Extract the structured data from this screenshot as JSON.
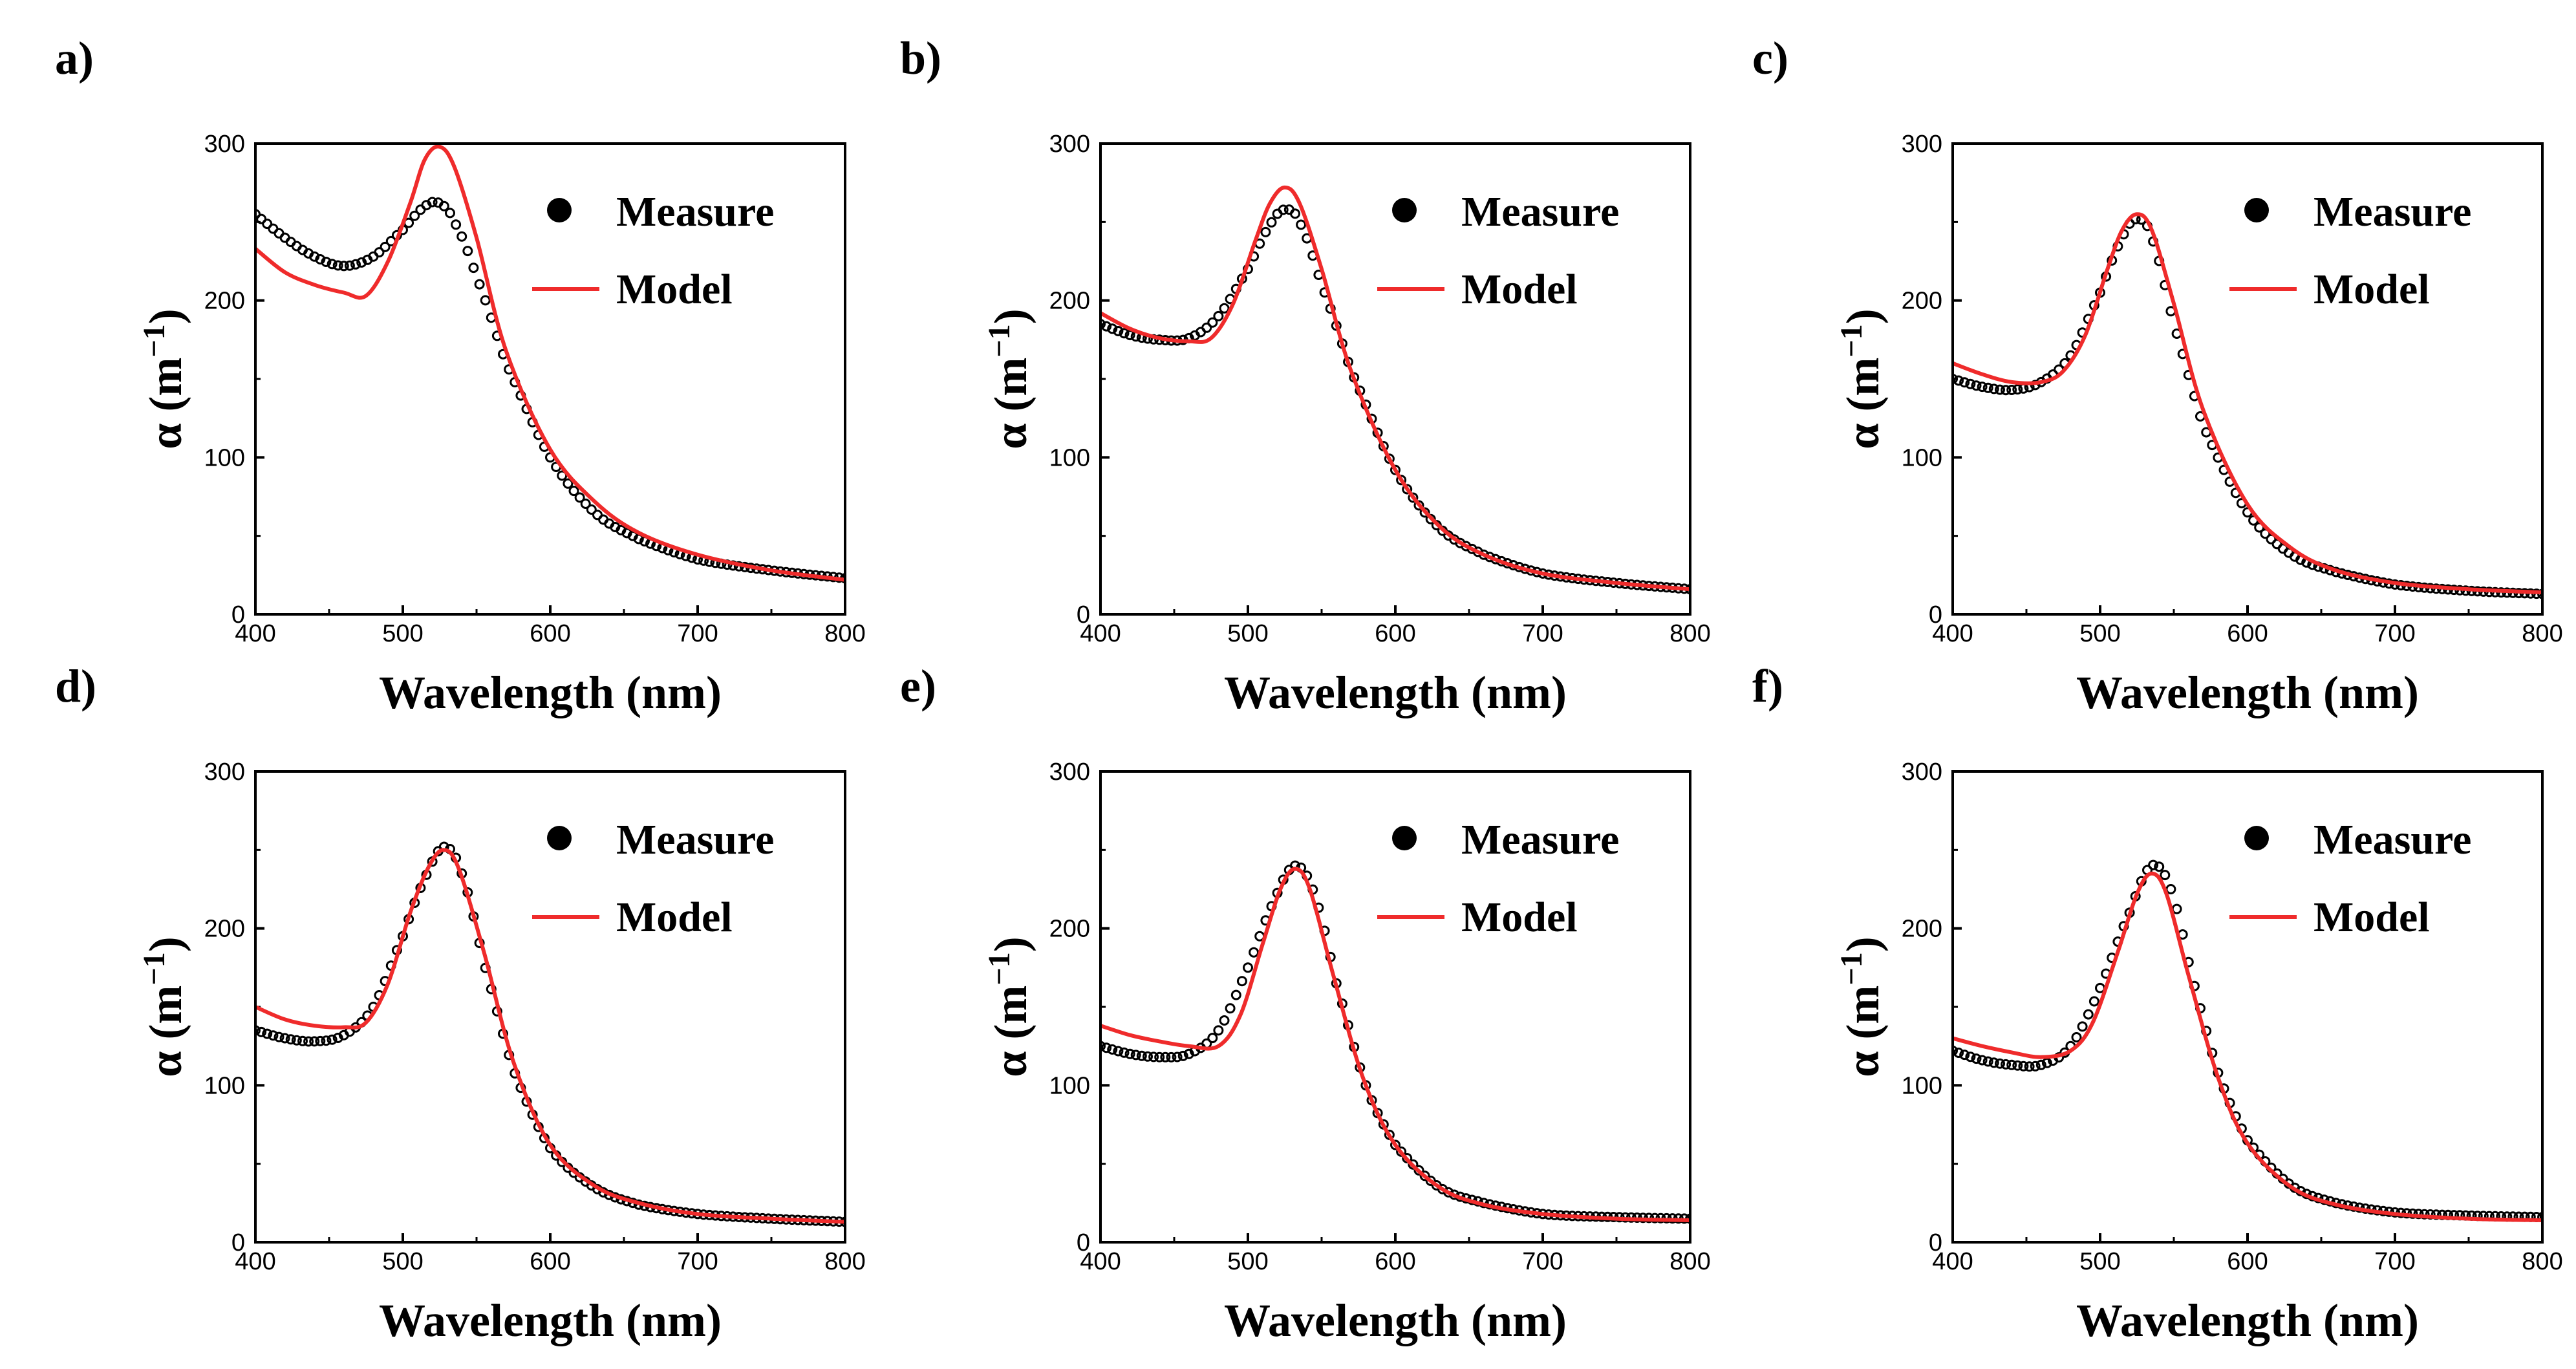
{
  "figure": {
    "colors": {
      "measure": "#000000",
      "model": "#ef2b2b",
      "axis": "#000000"
    }
  },
  "chart_data": [
    {
      "type": "line",
      "panel_label": "a)",
      "xlabel": "Wavelength (nm)",
      "ylabel": "α (m−1)",
      "ylabel_main": "α (m",
      "ylabel_sup": "−1",
      "ylabel_close": ")",
      "xlim": [
        400,
        800
      ],
      "ylim": [
        0,
        300
      ],
      "xticks": [
        "400",
        "500",
        "600",
        "700",
        "800"
      ],
      "yticks": [
        "0",
        "100",
        "200",
        "300"
      ],
      "legend": [
        "Measure",
        "Model"
      ],
      "legend_position": "top-right",
      "series": [
        {
          "name": "Measure",
          "style": "markers",
          "x": [
            400,
            420,
            440,
            460,
            480,
            500,
            515,
            525,
            535,
            550,
            570,
            600,
            630,
            660,
            700,
            750,
            800
          ],
          "y": [
            255,
            240,
            228,
            222,
            228,
            245,
            260,
            262,
            250,
            215,
            160,
            100,
            65,
            48,
            35,
            28,
            23
          ]
        },
        {
          "name": "Model",
          "style": "line",
          "x": [
            400,
            420,
            440,
            460,
            475,
            490,
            505,
            515,
            525,
            535,
            550,
            570,
            600,
            630,
            660,
            700,
            750,
            800
          ],
          "y": [
            233,
            218,
            210,
            205,
            203,
            225,
            262,
            290,
            298,
            285,
            240,
            168,
            105,
            72,
            52,
            38,
            28,
            22
          ]
        }
      ]
    },
    {
      "type": "line",
      "panel_label": "b)",
      "xlabel": "Wavelength (nm)",
      "ylabel": "α (m−1)",
      "ylabel_main": "α (m",
      "ylabel_sup": "−1",
      "ylabel_close": ")",
      "xlim": [
        400,
        800
      ],
      "ylim": [
        0,
        300
      ],
      "xticks": [
        "400",
        "500",
        "600",
        "700",
        "800"
      ],
      "yticks": [
        "0",
        "100",
        "200",
        "300"
      ],
      "legend": [
        "Measure",
        "Model"
      ],
      "legend_position": "top-right",
      "series": [
        {
          "name": "Measure",
          "style": "markers",
          "x": [
            400,
            420,
            440,
            460,
            480,
            500,
            515,
            525,
            535,
            550,
            570,
            600,
            630,
            660,
            700,
            750,
            800
          ],
          "y": [
            185,
            178,
            175,
            176,
            190,
            220,
            248,
            258,
            250,
            210,
            155,
            92,
            55,
            38,
            26,
            20,
            16
          ]
        },
        {
          "name": "Model",
          "style": "line",
          "x": [
            400,
            420,
            440,
            460,
            475,
            490,
            505,
            515,
            525,
            535,
            550,
            570,
            600,
            630,
            660,
            700,
            750,
            800
          ],
          "y": [
            192,
            182,
            176,
            174,
            176,
            198,
            238,
            262,
            272,
            262,
            220,
            155,
            92,
            56,
            38,
            26,
            20,
            16
          ]
        }
      ]
    },
    {
      "type": "line",
      "panel_label": "c)",
      "xlabel": "Wavelength (nm)",
      "ylabel": "α (m−1)",
      "ylabel_main": "α (m",
      "ylabel_sup": "−1",
      "ylabel_close": ")",
      "xlim": [
        400,
        800
      ],
      "ylim": [
        0,
        300
      ],
      "xticks": [
        "400",
        "500",
        "600",
        "700",
        "800"
      ],
      "yticks": [
        "0",
        "100",
        "200",
        "300"
      ],
      "legend": [
        "Measure",
        "Model"
      ],
      "legend_position": "top-right",
      "series": [
        {
          "name": "Measure",
          "style": "markers",
          "x": [
            400,
            420,
            440,
            460,
            480,
            500,
            515,
            525,
            535,
            550,
            570,
            600,
            630,
            660,
            700,
            750,
            800
          ],
          "y": [
            150,
            145,
            143,
            148,
            165,
            205,
            240,
            252,
            240,
            185,
            120,
            65,
            38,
            27,
            19,
            15,
            13
          ]
        },
        {
          "name": "Model",
          "style": "line",
          "x": [
            400,
            420,
            440,
            460,
            475,
            490,
            505,
            515,
            525,
            535,
            550,
            570,
            600,
            630,
            660,
            700,
            750,
            800
          ],
          "y": [
            160,
            153,
            148,
            148,
            155,
            178,
            220,
            245,
            255,
            245,
            198,
            130,
            70,
            42,
            28,
            20,
            16,
            14
          ]
        }
      ]
    },
    {
      "type": "line",
      "panel_label": "d)",
      "xlabel": "Wavelength (nm)",
      "ylabel": "α (m−1)",
      "ylabel_main": "α (m",
      "ylabel_sup": "−1",
      "ylabel_close": ")",
      "xlim": [
        400,
        800
      ],
      "ylim": [
        0,
        300
      ],
      "xticks": [
        "400",
        "500",
        "600",
        "700",
        "800"
      ],
      "yticks": [
        "0",
        "100",
        "200",
        "300"
      ],
      "legend": [
        "Measure",
        "Model"
      ],
      "legend_position": "top-right",
      "series": [
        {
          "name": "Measure",
          "style": "markers",
          "x": [
            400,
            420,
            440,
            460,
            480,
            500,
            515,
            528,
            540,
            555,
            575,
            600,
            630,
            660,
            700,
            750,
            800
          ],
          "y": [
            135,
            130,
            128,
            132,
            150,
            195,
            232,
            252,
            235,
            178,
            110,
            60,
            35,
            24,
            18,
            15,
            13
          ]
        },
        {
          "name": "Model",
          "style": "line",
          "x": [
            400,
            420,
            440,
            460,
            475,
            490,
            505,
            518,
            528,
            538,
            555,
            575,
            600,
            630,
            660,
            700,
            750,
            800
          ],
          "y": [
            150,
            142,
            138,
            137,
            140,
            165,
            210,
            240,
            250,
            238,
            185,
            115,
            62,
            36,
            25,
            18,
            15,
            13
          ]
        }
      ]
    },
    {
      "type": "line",
      "panel_label": "e)",
      "xlabel": "Wavelength (nm)",
      "ylabel": "α (m−1)",
      "ylabel_main": "α (m",
      "ylabel_sup": "−1",
      "ylabel_close": ")",
      "xlim": [
        400,
        800
      ],
      "ylim": [
        0,
        300
      ],
      "xticks": [
        "400",
        "500",
        "600",
        "700",
        "800"
      ],
      "yticks": [
        "0",
        "100",
        "200",
        "300"
      ],
      "legend": [
        "Measure",
        "Model"
      ],
      "legend_position": "top-right",
      "series": [
        {
          "name": "Measure",
          "style": "markers",
          "x": [
            400,
            420,
            440,
            460,
            480,
            500,
            518,
            532,
            545,
            560,
            580,
            600,
            630,
            660,
            700,
            750,
            800
          ],
          "y": [
            125,
            120,
            118,
            120,
            135,
            175,
            218,
            240,
            222,
            165,
            100,
            62,
            35,
            25,
            18,
            16,
            15
          ]
        },
        {
          "name": "Model",
          "style": "line",
          "x": [
            400,
            420,
            440,
            460,
            480,
            495,
            510,
            522,
            532,
            542,
            558,
            578,
            600,
            630,
            660,
            700,
            750,
            800
          ],
          "y": [
            138,
            132,
            128,
            125,
            125,
            145,
            190,
            225,
            238,
            225,
            170,
            105,
            62,
            35,
            24,
            18,
            15,
            14
          ]
        }
      ]
    },
    {
      "type": "line",
      "panel_label": "f)",
      "xlabel": "Wavelength (nm)",
      "ylabel": "α (m−1)",
      "ylabel_main": "α (m",
      "ylabel_sup": "−1",
      "ylabel_close": ")",
      "xlim": [
        400,
        800
      ],
      "ylim": [
        0,
        300
      ],
      "xticks": [
        "400",
        "500",
        "600",
        "700",
        "800"
      ],
      "yticks": [
        "0",
        "100",
        "200",
        "300"
      ],
      "legend": [
        "Measure",
        "Model"
      ],
      "legend_position": "top-right",
      "series": [
        {
          "name": "Measure",
          "style": "markers",
          "x": [
            400,
            420,
            440,
            460,
            480,
            500,
            520,
            535,
            548,
            562,
            580,
            600,
            630,
            660,
            700,
            750,
            800
          ],
          "y": [
            122,
            116,
            113,
            113,
            125,
            162,
            210,
            240,
            225,
            170,
            108,
            65,
            36,
            25,
            19,
            17,
            16
          ]
        },
        {
          "name": "Model",
          "style": "line",
          "x": [
            400,
            420,
            440,
            460,
            480,
            495,
            512,
            525,
            535,
            545,
            560,
            580,
            600,
            630,
            660,
            700,
            750,
            800
          ],
          "y": [
            130,
            125,
            121,
            118,
            122,
            140,
            185,
            222,
            235,
            222,
            170,
            105,
            63,
            35,
            24,
            18,
            15,
            14
          ]
        }
      ]
    }
  ]
}
